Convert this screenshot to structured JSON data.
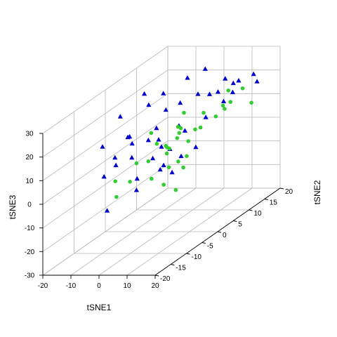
{
  "chart_data": {
    "type": "scatter3d",
    "title": "",
    "xlabel": "tSNE1",
    "ylabel": "tSNE2",
    "zlabel": "tSNE3",
    "x_ticks": [
      "-20",
      "-10",
      "0",
      "10",
      "20"
    ],
    "y_ticks": [
      "-20",
      "-15",
      "-10",
      "-5",
      "0",
      "5",
      "10",
      "15",
      "20"
    ],
    "z_ticks": [
      "-30",
      "-20",
      "-10",
      "0",
      "10",
      "20",
      "30"
    ],
    "xlim": [
      -20,
      20
    ],
    "ylim": [
      -20,
      20
    ],
    "zlim": [
      -30,
      30
    ],
    "grid": true,
    "series": [
      {
        "marker": "triangle",
        "color": "#0000cd",
        "points": [
          [
            -21,
            0,
            6
          ],
          [
            -12,
            0,
            10
          ],
          [
            -18,
            3,
            16
          ],
          [
            -15,
            8,
            21
          ],
          [
            -9,
            4,
            20
          ],
          [
            -6,
            6,
            23
          ],
          [
            -3,
            11,
            25
          ],
          [
            0,
            14,
            26
          ],
          [
            -8,
            -3,
            13
          ],
          [
            -6,
            -4,
            11
          ],
          [
            -5,
            -5,
            6
          ],
          [
            -11,
            -5,
            6
          ],
          [
            -16,
            -4,
            -3
          ],
          [
            -14,
            -2,
            0
          ],
          [
            -6,
            -12,
            -10
          ],
          [
            -2,
            -6,
            -2
          ],
          [
            -8,
            3,
            6
          ],
          [
            -4,
            2,
            12
          ],
          [
            -4,
            5,
            17
          ],
          [
            0,
            6,
            19
          ],
          [
            3,
            9,
            20
          ],
          [
            6,
            10,
            19
          ],
          [
            9,
            10,
            20
          ],
          [
            6,
            15,
            21
          ],
          [
            10,
            14,
            20
          ],
          [
            14,
            18,
            17
          ],
          [
            15,
            16,
            22
          ],
          [
            13,
            13,
            22
          ],
          [
            12,
            12,
            18
          ],
          [
            11,
            10,
            16
          ],
          [
            8,
            7,
            12
          ],
          [
            5,
            3,
            10
          ],
          [
            3,
            0,
            5
          ],
          [
            0,
            0,
            6
          ],
          [
            -1,
            0,
            9
          ],
          [
            3,
            -2,
            0
          ],
          [
            4,
            -4,
            0
          ],
          [
            7,
            0,
            2
          ],
          [
            10,
            2,
            4
          ],
          [
            6,
            -2,
            -3
          ],
          [
            4,
            2,
            13
          ],
          [
            0,
            -8,
            -5
          ],
          [
            -2,
            -1,
            2
          ]
        ]
      },
      {
        "marker": "circle",
        "color": "#33cc33",
        "points": [
          [
            15,
            -15,
            21
          ],
          [
            18,
            -10,
            23
          ],
          [
            16,
            3,
            16
          ],
          [
            15,
            -1,
            15
          ],
          [
            13,
            8,
            16
          ],
          [
            12,
            -9,
            14
          ],
          [
            14,
            -4,
            12
          ],
          [
            16,
            -9,
            8
          ],
          [
            13,
            -11,
            0
          ],
          [
            14,
            -8,
            -5
          ],
          [
            6,
            -4,
            10
          ],
          [
            5,
            -2,
            7
          ],
          [
            3,
            -1,
            4
          ],
          [
            9,
            0,
            2
          ],
          [
            10,
            -2,
            -1
          ],
          [
            6,
            -3,
            0
          ],
          [
            2,
            -5,
            -3
          ],
          [
            -6,
            -9,
            -7
          ],
          [
            -9,
            -2,
            -7
          ],
          [
            -12,
            -4,
            -5
          ],
          [
            -10,
            1,
            -2
          ],
          [
            -8,
            3,
            -3
          ],
          [
            0,
            5,
            5
          ],
          [
            3,
            3,
            9
          ],
          [
            5,
            9,
            12
          ],
          [
            -3,
            8,
            7
          ],
          [
            2,
            9,
            5
          ],
          [
            8,
            13,
            10
          ],
          [
            10,
            17,
            15
          ],
          [
            6,
            16,
            15
          ],
          [
            -2,
            9,
            12
          ],
          [
            -7,
            3,
            9
          ],
          [
            9,
            14,
            12
          ],
          [
            12,
            18,
            8
          ]
        ]
      }
    ]
  }
}
